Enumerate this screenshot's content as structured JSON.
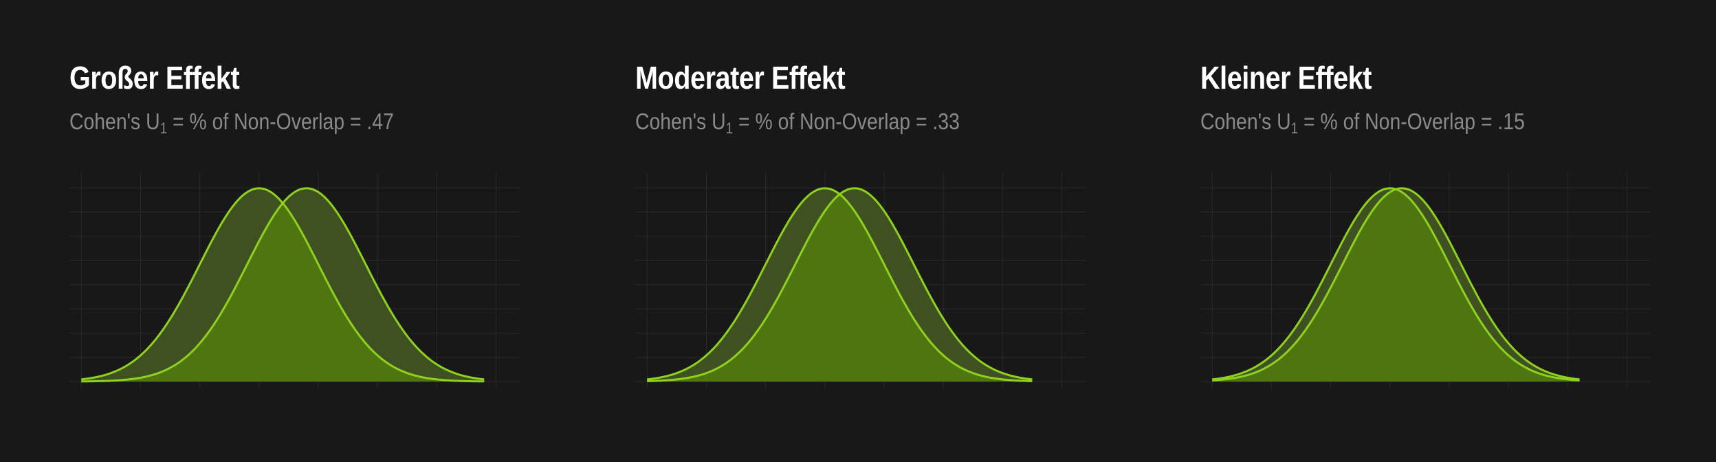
{
  "panels": [
    {
      "title": "Großer Effekt",
      "subtitle_prefix": "Cohen's U",
      "subtitle_sub": "1",
      "subtitle_suffix": " = % of Non-Overlap = .47",
      "chart_data": {
        "type": "area",
        "x_range": [
          -3.2,
          4.4
        ],
        "y_range": [
          0,
          0.42
        ],
        "grid": true,
        "series": [
          {
            "distribution": "normal",
            "mean": 0,
            "sd": 1
          },
          {
            "distribution": "normal",
            "mean": 0.8,
            "sd": 1
          }
        ]
      }
    },
    {
      "title": "Moderater Effekt",
      "subtitle_prefix": "Cohen's U",
      "subtitle_sub": "1",
      "subtitle_suffix": " = % of Non-Overlap = .33",
      "chart_data": {
        "type": "area",
        "x_range": [
          -3.2,
          4.4
        ],
        "y_range": [
          0,
          0.42
        ],
        "grid": true,
        "series": [
          {
            "distribution": "normal",
            "mean": 0,
            "sd": 1
          },
          {
            "distribution": "normal",
            "mean": 0.5,
            "sd": 1
          }
        ]
      }
    },
    {
      "title": "Kleiner Effekt",
      "subtitle_prefix": "Cohen's U",
      "subtitle_sub": "1",
      "subtitle_suffix": " = % of Non-Overlap = .15",
      "chart_data": {
        "type": "area",
        "x_range": [
          -3.2,
          4.4
        ],
        "y_range": [
          0,
          0.42
        ],
        "grid": true,
        "series": [
          {
            "distribution": "normal",
            "mean": 0,
            "sd": 1
          },
          {
            "distribution": "normal",
            "mean": 0.2,
            "sd": 1
          }
        ]
      }
    }
  ],
  "colors": {
    "background": "#181818",
    "title": "#ffffff",
    "subtitle": "#8a8a8a",
    "grid": "#2a2a2a",
    "curve_stroke": "#8fd11f",
    "fill_outer": "#3f5120",
    "fill_overlap": "#4e750f"
  }
}
